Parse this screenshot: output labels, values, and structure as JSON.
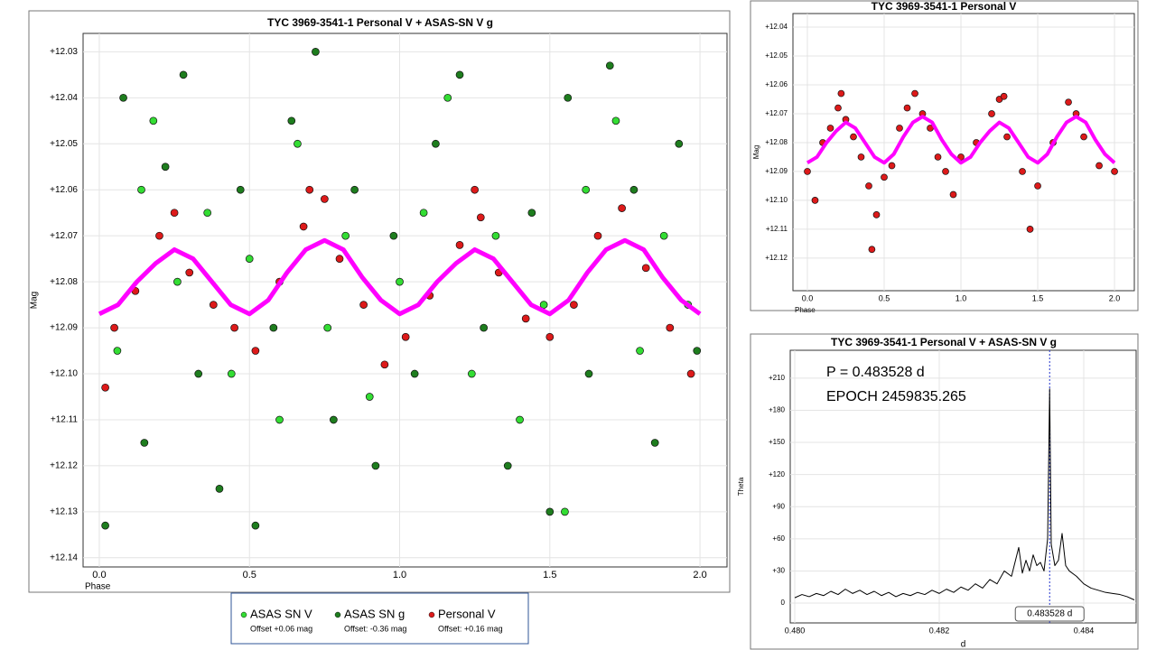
{
  "chart_data": [
    {
      "type": "scatter",
      "title": "TYC 3969-3541-1 Personal V + ASAS-SN V g",
      "x_label": "Phase",
      "y_label": "Mag",
      "xlim": [
        -0.054,
        2.09
      ],
      "ylim": [
        12.142,
        12.026
      ],
      "grid": true,
      "legend": "bottom",
      "xticks": [
        {
          "value": 0,
          "label": "0.0"
        },
        0.5,
        {
          "value": 1,
          "label": "1.0"
        },
        1.5,
        {
          "value": 2,
          "label": "2.0"
        }
      ],
      "yticks": [
        {
          "value": 12.03,
          "label": "+12.03"
        },
        {
          "value": 12.04,
          "label": "+12.04"
        },
        {
          "value": 12.05,
          "label": "+12.05"
        },
        {
          "value": 12.06,
          "label": "+12.06"
        },
        {
          "value": 12.07,
          "label": "+12.07"
        },
        {
          "value": 12.08,
          "label": "+12.08"
        },
        {
          "value": 12.09,
          "label": "+12.09"
        },
        {
          "value": 12.1,
          "label": "+12.10"
        },
        {
          "value": 12.11,
          "label": "+12.11"
        },
        {
          "value": 12.12,
          "label": "+12.12"
        },
        {
          "value": 12.13,
          "label": "+12.13"
        },
        {
          "value": 12.14,
          "label": "+12.14"
        }
      ],
      "series": [
        {
          "name": "ASAS SN g",
          "offset_label": "Offset: -0.36 mag",
          "color": "#1e7d1e",
          "mode": "markers",
          "x": [
            0.02,
            0.08,
            0.15,
            0.22,
            0.28,
            0.33,
            0.4,
            0.47,
            0.52,
            0.58,
            0.64,
            0.72,
            0.78,
            0.85,
            0.92,
            0.98,
            1.05,
            1.12,
            1.2,
            1.28,
            1.36,
            1.44,
            1.5,
            1.56,
            1.63,
            1.7,
            1.78,
            1.85,
            1.93,
            1.99
          ],
          "values": [
            12.133,
            12.04,
            12.115,
            12.055,
            12.035,
            12.1,
            12.125,
            12.06,
            12.133,
            12.09,
            12.045,
            12.03,
            12.11,
            12.06,
            12.12,
            12.07,
            12.1,
            12.05,
            12.035,
            12.09,
            12.12,
            12.065,
            12.13,
            12.04,
            12.1,
            12.033,
            12.06,
            12.115,
            12.05,
            12.095
          ]
        },
        {
          "name": "ASAS SN V",
          "offset_label": "Offset +0.06 mag",
          "color": "#33dd33",
          "mode": "markers",
          "x": [
            0.06,
            0.14,
            0.18,
            0.26,
            0.36,
            0.44,
            0.5,
            0.6,
            0.66,
            0.76,
            0.82,
            0.9,
            1.0,
            1.08,
            1.16,
            1.24,
            1.32,
            1.4,
            1.48,
            1.55,
            1.62,
            1.72,
            1.8,
            1.88,
            1.96
          ],
          "values": [
            12.095,
            12.06,
            12.045,
            12.08,
            12.065,
            12.1,
            12.075,
            12.11,
            12.05,
            12.09,
            12.07,
            12.105,
            12.08,
            12.065,
            12.04,
            12.1,
            12.07,
            12.11,
            12.085,
            12.13,
            12.06,
            12.045,
            12.095,
            12.07,
            12.085
          ]
        },
        {
          "name": "Personal V",
          "offset_label": "Offset: +0.16 mag",
          "color": "#dd1a1a",
          "mode": "markers",
          "x": [
            0.05,
            0.12,
            0.2,
            0.25,
            0.3,
            0.38,
            0.45,
            0.52,
            0.6,
            0.68,
            0.75,
            0.8,
            0.88,
            0.95,
            1.02,
            1.1,
            1.2,
            1.27,
            1.33,
            1.42,
            1.5,
            1.58,
            1.66,
            1.74,
            1.82,
            1.9,
            1.97,
            0.02,
            0.7,
            1.25
          ],
          "values": [
            12.09,
            12.082,
            12.07,
            12.065,
            12.078,
            12.085,
            12.09,
            12.095,
            12.08,
            12.068,
            12.062,
            12.075,
            12.085,
            12.098,
            12.092,
            12.083,
            12.072,
            12.066,
            12.078,
            12.088,
            12.092,
            12.085,
            12.07,
            12.064,
            12.077,
            12.09,
            12.1,
            12.103,
            12.06,
            12.06
          ]
        },
        {
          "color": "#ff00ff",
          "mode": "lines",
          "x": [
            0,
            0.0625,
            0.125,
            0.1875,
            0.25,
            0.3125,
            0.375,
            0.4375,
            0.5,
            0.5625,
            0.625,
            0.6875,
            0.75,
            0.8125,
            0.875,
            0.9375,
            1,
            1.0625,
            1.125,
            1.1875,
            1.25,
            1.3125,
            1.375,
            1.4375,
            1.5,
            1.5625,
            1.625,
            1.6875,
            1.75,
            1.8125,
            1.875,
            1.9375,
            2
          ],
          "values": [
            12.087,
            12.085,
            12.08,
            12.076,
            12.073,
            12.075,
            12.08,
            12.085,
            12.087,
            12.084,
            12.078,
            12.073,
            12.071,
            12.073,
            12.079,
            12.084,
            12.087,
            12.085,
            12.08,
            12.076,
            12.073,
            12.075,
            12.08,
            12.085,
            12.087,
            12.084,
            12.078,
            12.073,
            12.071,
            12.073,
            12.079,
            12.084,
            12.087
          ]
        }
      ]
    },
    {
      "type": "scatter",
      "title": "TYC 3969-3541-1 Personal V",
      "x_label": "Phase",
      "y_label": "Mag",
      "xlim": [
        -0.094,
        2.129
      ],
      "ylim": [
        12.1313,
        12.0353
      ],
      "grid": true,
      "xticks": [
        {
          "value": 0,
          "label": "0.0"
        },
        0.5,
        {
          "value": 1,
          "label": "1.0"
        },
        1.5,
        {
          "value": 2,
          "label": "2.0"
        }
      ],
      "yticks": [
        {
          "value": 12.04,
          "label": "+12.04"
        },
        {
          "value": 12.05,
          "label": "+12.05"
        },
        {
          "value": 12.06,
          "label": "+12.06"
        },
        {
          "value": 12.07,
          "label": "+12.07"
        },
        {
          "value": 12.08,
          "label": "+12.08"
        },
        {
          "value": 12.09,
          "label": "+12.09"
        },
        {
          "value": 12.1,
          "label": "+12.10"
        },
        {
          "value": 12.11,
          "label": "+12.11"
        },
        {
          "value": 12.12,
          "label": "+12.12"
        }
      ],
      "series": [
        {
          "color": "#dd1a1a",
          "mode": "markers",
          "x": [
            0.0,
            0.05,
            0.1,
            0.15,
            0.2,
            0.25,
            0.3,
            0.35,
            0.4,
            0.45,
            0.5,
            0.55,
            0.6,
            0.65,
            0.7,
            0.75,
            0.8,
            0.85,
            0.9,
            0.95,
            1.0,
            1.1,
            1.2,
            1.25,
            1.3,
            1.4,
            1.5,
            1.6,
            1.7,
            1.75,
            1.8,
            1.9,
            2.0,
            0.42,
            0.22,
            1.45,
            1.28
          ],
          "values": [
            12.09,
            12.1,
            12.08,
            12.075,
            12.068,
            12.072,
            12.078,
            12.085,
            12.095,
            12.105,
            12.092,
            12.088,
            12.075,
            12.068,
            12.063,
            12.07,
            12.075,
            12.085,
            12.09,
            12.098,
            12.085,
            12.08,
            12.07,
            12.065,
            12.078,
            12.09,
            12.095,
            12.08,
            12.066,
            12.07,
            12.078,
            12.088,
            12.09,
            12.117,
            12.063,
            12.11,
            12.064
          ]
        },
        {
          "color": "#ff00ff",
          "mode": "lines",
          "x": [
            0,
            0.0625,
            0.125,
            0.1875,
            0.25,
            0.3125,
            0.375,
            0.4375,
            0.5,
            0.5625,
            0.625,
            0.6875,
            0.75,
            0.8125,
            0.875,
            0.9375,
            1,
            1.0625,
            1.125,
            1.1875,
            1.25,
            1.3125,
            1.375,
            1.4375,
            1.5,
            1.5625,
            1.625,
            1.6875,
            1.75,
            1.8125,
            1.875,
            1.9375,
            2
          ],
          "values": [
            12.087,
            12.085,
            12.08,
            12.076,
            12.073,
            12.075,
            12.08,
            12.085,
            12.087,
            12.084,
            12.078,
            12.073,
            12.071,
            12.073,
            12.079,
            12.084,
            12.087,
            12.085,
            12.08,
            12.076,
            12.073,
            12.075,
            12.08,
            12.085,
            12.087,
            12.084,
            12.078,
            12.073,
            12.071,
            12.073,
            12.079,
            12.084,
            12.087
          ]
        }
      ]
    },
    {
      "type": "line",
      "title": "TYC 3969-3541-1 Personal V + ASAS-SN V g",
      "x_label": "d",
      "y_label": "Theta",
      "annotations": [
        "P = 0.483528 d",
        "EPOCH 2459835.265"
      ],
      "marker_x": 0.483528,
      "marker_label": "0.483528 d",
      "xlim": [
        0.4799375,
        0.484725
      ],
      "ylim": [
        -18.5,
        236
      ],
      "grid": true,
      "xticks": [
        {
          "value": 0.48,
          "label": "0.480"
        },
        0.482,
        0.484
      ],
      "yticks": [
        0,
        {
          "value": 30,
          "label": "+30"
        },
        {
          "value": 60,
          "label": "+60"
        },
        {
          "value": 90,
          "label": "+90"
        },
        {
          "value": 120,
          "label": "+120"
        },
        {
          "value": 150,
          "label": "+150"
        },
        {
          "value": 180,
          "label": "+180"
        },
        {
          "value": 210,
          "label": "+210"
        }
      ],
      "series": [
        {
          "color": "#000000",
          "mode": "lines",
          "x": [
            0.48,
            0.4801,
            0.4802,
            0.4803,
            0.4804,
            0.4805,
            0.4806,
            0.4807,
            0.4808,
            0.4809,
            0.481,
            0.4811,
            0.4812,
            0.4813,
            0.4814,
            0.4815,
            0.4816,
            0.4817,
            0.4818,
            0.4819,
            0.482,
            0.4821,
            0.4822,
            0.4823,
            0.4824,
            0.4825,
            0.4826,
            0.4827,
            0.4828,
            0.4829,
            0.483,
            0.4831,
            0.48315,
            0.4832,
            0.48325,
            0.4833,
            0.48335,
            0.4834,
            0.48345,
            0.4835,
            0.483528,
            0.48355,
            0.4836,
            0.48365,
            0.4837,
            0.48375,
            0.4838,
            0.4839,
            0.484,
            0.4841,
            0.4842,
            0.4843,
            0.4844,
            0.4845,
            0.4846,
            0.4847
          ],
          "values": [
            5,
            8,
            6,
            9,
            7,
            11,
            8,
            13,
            9,
            12,
            8,
            11,
            7,
            10,
            6,
            9,
            7,
            10,
            8,
            12,
            9,
            13,
            10,
            15,
            12,
            18,
            14,
            22,
            18,
            30,
            25,
            52,
            28,
            40,
            30,
            45,
            35,
            38,
            30,
            60,
            200,
            55,
            35,
            40,
            65,
            35,
            30,
            25,
            18,
            14,
            12,
            10,
            9,
            8,
            6,
            3
          ]
        }
      ]
    }
  ]
}
